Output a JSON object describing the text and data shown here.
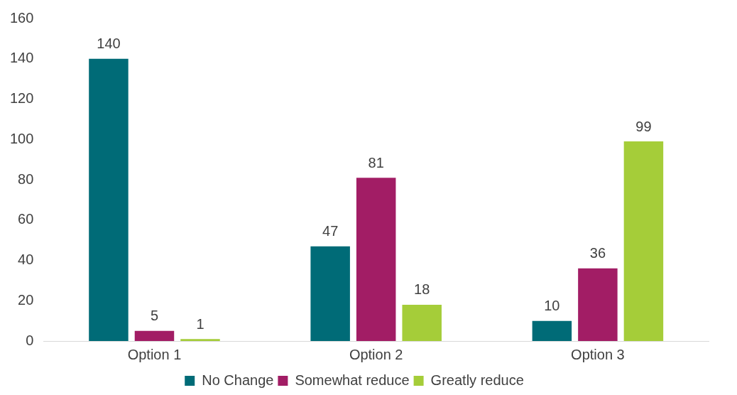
{
  "chart_data": {
    "type": "bar",
    "categories": [
      "Option 1",
      "Option 2",
      "Option 3"
    ],
    "series": [
      {
        "name": "No Change",
        "color": "#006b77",
        "values": [
          140,
          47,
          10
        ]
      },
      {
        "name": "Somewhat reduce",
        "color": "#a21d65",
        "values": [
          5,
          81,
          36
        ]
      },
      {
        "name": "Greatly reduce",
        "color": "#a5cd39",
        "values": [
          1,
          18,
          99
        ]
      }
    ],
    "ylim": [
      0,
      160
    ],
    "yticks": [
      0,
      20,
      40,
      60,
      80,
      100,
      120,
      140,
      160
    ],
    "grid": false,
    "legend": "bottom",
    "data_labels": true
  }
}
